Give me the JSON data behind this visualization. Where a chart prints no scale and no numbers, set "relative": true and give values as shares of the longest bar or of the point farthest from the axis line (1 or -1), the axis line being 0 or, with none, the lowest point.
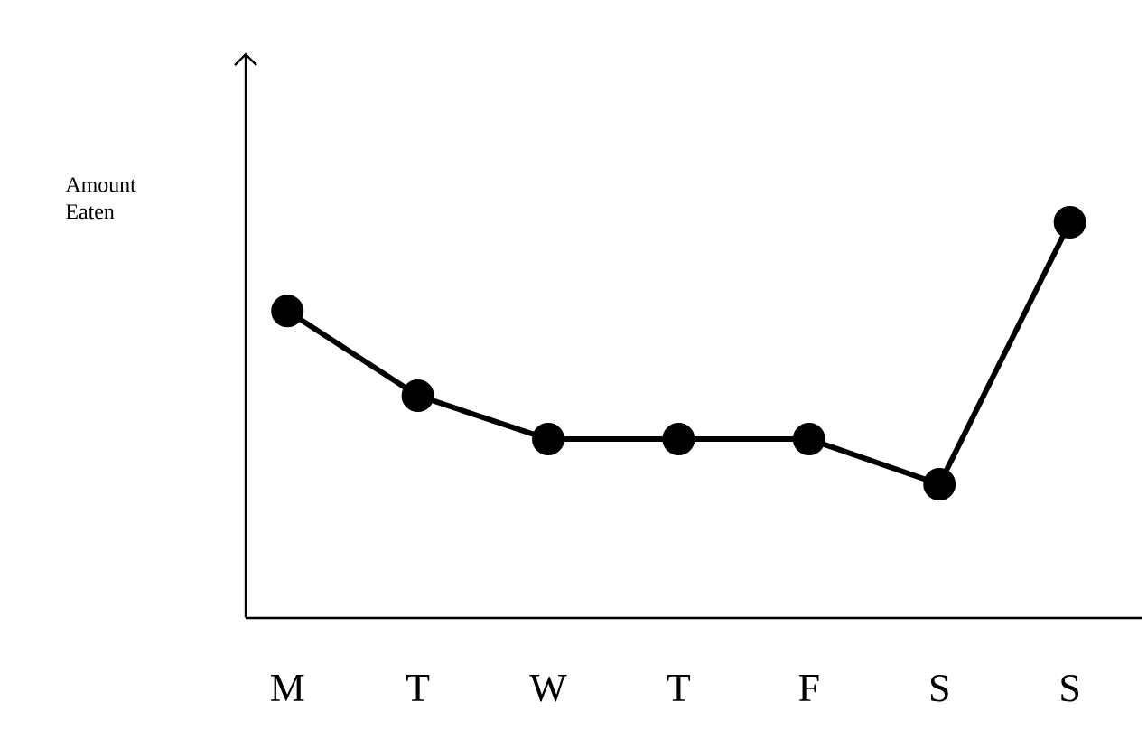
{
  "chart_data": {
    "type": "line",
    "annotations": [
      "Amount Eaten"
    ],
    "categories": [
      "M",
      "T",
      "W",
      "T",
      "F",
      "S",
      "S"
    ],
    "values": [
      0.776,
      0.562,
      0.452,
      0.452,
      0.452,
      0.338,
      1
    ],
    "relative": true,
    "color": "#000000",
    "marker": "circle",
    "line_style": "solid",
    "grid": false
  }
}
